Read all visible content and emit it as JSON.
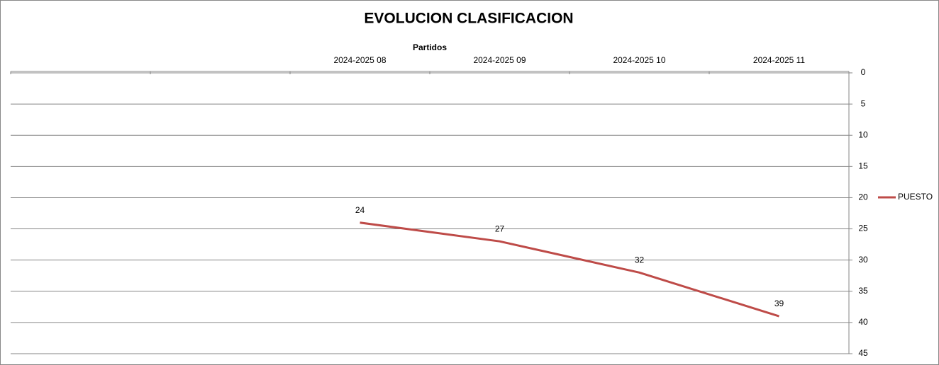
{
  "chart_data": {
    "type": "line",
    "title": "EVOLUCION CLASIFICACION",
    "x_label": "Partidos",
    "categories": [
      null,
      null,
      "2024-2025 08",
      "2024-2025 09",
      "2024-2025 10",
      "2024-2025 11"
    ],
    "series": [
      {
        "name": "PUESTO",
        "color": "#be4b48",
        "values": [
          null,
          null,
          24,
          27,
          32,
          39
        ]
      }
    ],
    "ylim": [
      0,
      45
    ],
    "yticks": [
      0,
      5,
      10,
      15,
      20,
      25,
      30,
      35,
      40,
      45
    ],
    "y_reversed": true,
    "y_axis_side": "right",
    "x_axis_side": "top",
    "grid": true,
    "data_labels": true,
    "legend": "right"
  }
}
